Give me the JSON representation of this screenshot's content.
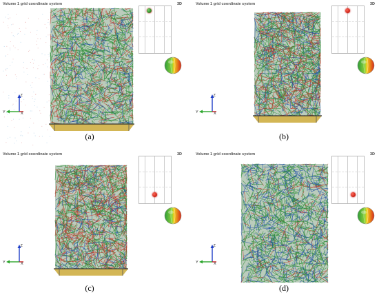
{
  "panels": [
    {
      "id": "a",
      "header_title": "Volume 1 grid coordinate system",
      "view_mode": "3D",
      "axes": {
        "z": "Z",
        "y": "Y",
        "x": "X"
      },
      "caption": "(a)",
      "colors": {
        "fiber_primary": "#2f8f3a",
        "fiber_secondary": "#c0392b",
        "fiber_tertiary": "#1f4fa8",
        "frame": "#c8a42a"
      },
      "icons": [
        "grid-position-map-icon",
        "orientation-sphere-icon",
        "axis-triad-icon"
      ]
    },
    {
      "id": "b",
      "header_title": "Volume 1 grid coordinate system",
      "view_mode": "3D",
      "axes": {
        "z": "Z",
        "y": "Y",
        "x": "X"
      },
      "caption": "(b)",
      "colors": {
        "fiber_primary": "#2f8f3a",
        "fiber_secondary": "#c0392b",
        "fiber_tertiary": "#1f4fa8",
        "frame": "#c8a42a"
      },
      "icons": [
        "grid-position-map-icon",
        "orientation-sphere-icon",
        "axis-triad-icon"
      ]
    },
    {
      "id": "c",
      "header_title": "Volume 1 grid coordinate system",
      "view_mode": "3D",
      "axes": {
        "z": "Z",
        "y": "Y",
        "x": "X"
      },
      "caption": "(c)",
      "colors": {
        "fiber_primary": "#2f8f3a",
        "fiber_secondary": "#c0392b",
        "fiber_tertiary": "#1f4fa8",
        "frame": "#c8a42a"
      },
      "icons": [
        "grid-position-map-icon",
        "orientation-sphere-icon",
        "axis-triad-icon"
      ]
    },
    {
      "id": "d",
      "header_title": "Volume 1 grid coordinate system",
      "view_mode": "3D",
      "axes": {
        "z": "Z",
        "y": "Y",
        "x": "X"
      },
      "caption": "(d)",
      "colors": {
        "fiber_primary": "#2f8f3a",
        "fiber_secondary": "#c0392b",
        "fiber_tertiary": "#1f4fa8",
        "frame": "#c8a42a"
      },
      "icons": [
        "grid-position-map-icon",
        "orientation-sphere-icon",
        "axis-triad-icon"
      ]
    }
  ]
}
